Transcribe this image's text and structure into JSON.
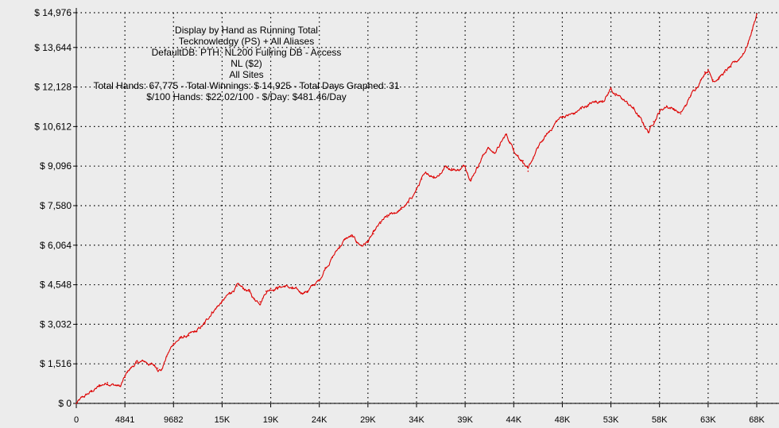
{
  "chart_data": {
    "type": "line",
    "info_lines": [
      "Display by Hand as Running Total",
      "Tecknowledgy (PS) + All Aliases",
      "DefaultDB: PTH: NL200 Fullring DB - Access",
      "NL ($2)",
      "All Sites",
      "Total Hands: 67,775 - Total Winnings: $ 14,925 - Total Days Graphed: 31",
      "$/100 Hands: $22.02/100 - $/Day: $481.46/Day"
    ],
    "y_tick_labels": [
      "$ 0",
      "$ 1,516",
      "$ 3,032",
      "$ 4,548",
      "$ 6,064",
      "$ 7,580",
      "$ 9,096",
      "$ 10,612",
      "$ 12,128",
      "$ 13,644",
      "$ 14,976"
    ],
    "y_tick_values": [
      0,
      1516,
      3032,
      4548,
      6064,
      7580,
      9096,
      10612,
      12128,
      13644,
      14976
    ],
    "x_tick_labels": [
      "0",
      "4841",
      "9682",
      "15K",
      "19K",
      "24K",
      "29K",
      "34K",
      "39K",
      "44K",
      "48K",
      "53K",
      "58K",
      "63K",
      "68K"
    ],
    "x_tick_values": [
      0,
      4841,
      9682,
      14523,
      19364,
      24205,
      29046,
      33887,
      38728,
      43569,
      48410,
      53251,
      58092,
      62933,
      67775
    ],
    "xlim": [
      0,
      67775
    ],
    "ylim": [
      0,
      14976
    ],
    "grid": true,
    "line_color": "#dd0000",
    "grid_color": "#000000",
    "background_color": "#ececec",
    "series": [
      {
        "x": [
          0,
          800,
          1500,
          2300,
          3100,
          3900,
          4400,
          4841,
          5300,
          6000,
          6800,
          7400,
          7800,
          8100,
          8500,
          9000,
          9682,
          10400,
          11200,
          12000,
          12800,
          13500,
          14000,
          14523,
          15300,
          16000,
          16600,
          17200,
          17700,
          18300,
          18900,
          19364,
          20000,
          20800,
          21500,
          22300,
          23000,
          23700,
          24205,
          24800,
          25500,
          26200,
          26800,
          27400,
          27900,
          28400,
          29046,
          29600,
          30300,
          31000,
          31700,
          32400,
          33100,
          33887,
          34400,
          35000,
          35600,
          36200,
          36800,
          37400,
          38000,
          38728,
          39300,
          39900,
          40500,
          41000,
          41600,
          42200,
          42800,
          43200,
          43569,
          44000,
          44500,
          45000,
          45500,
          46000,
          46500,
          47100,
          47800,
          48410,
          49000,
          49600,
          50300,
          51000,
          51700,
          52400,
          53000,
          53251,
          53700,
          54300,
          54900,
          55500,
          56000,
          56500,
          57000,
          57500,
          58092,
          58800,
          59500,
          60200,
          60700,
          61200,
          61700,
          62200,
          62600,
          62933,
          63400,
          64000,
          64600,
          65200,
          65800,
          66400,
          66900,
          67300,
          67775
        ],
        "y": [
          0,
          250,
          450,
          650,
          800,
          700,
          650,
          1000,
          1300,
          1550,
          1600,
          1500,
          1450,
          1350,
          1300,
          1800,
          2300,
          2500,
          2600,
          2750,
          3050,
          3500,
          3700,
          3900,
          4200,
          4500,
          4400,
          4300,
          4000,
          3900,
          4300,
          4400,
          4450,
          4500,
          4400,
          4250,
          4300,
          4550,
          4700,
          5200,
          5600,
          6000,
          6300,
          6400,
          6200,
          6050,
          6200,
          6500,
          6900,
          7150,
          7300,
          7450,
          7700,
          8200,
          8600,
          8800,
          8700,
          8800,
          9100,
          9000,
          8950,
          9100,
          8600,
          9050,
          9500,
          9800,
          9600,
          9900,
          10300,
          10000,
          9750,
          9500,
          9300,
          8900,
          9400,
          9800,
          10100,
          10400,
          10800,
          11000,
          11050,
          11100,
          11300,
          11450,
          11550,
          11600,
          11900,
          12100,
          11800,
          11700,
          11500,
          11300,
          11000,
          10700,
          10400,
          10800,
          11200,
          11400,
          11300,
          11100,
          11400,
          11800,
          12100,
          12400,
          12700,
          12800,
          12400,
          12500,
          12700,
          12900,
          13100,
          13400,
          13800,
          14300,
          14925
        ]
      }
    ]
  }
}
